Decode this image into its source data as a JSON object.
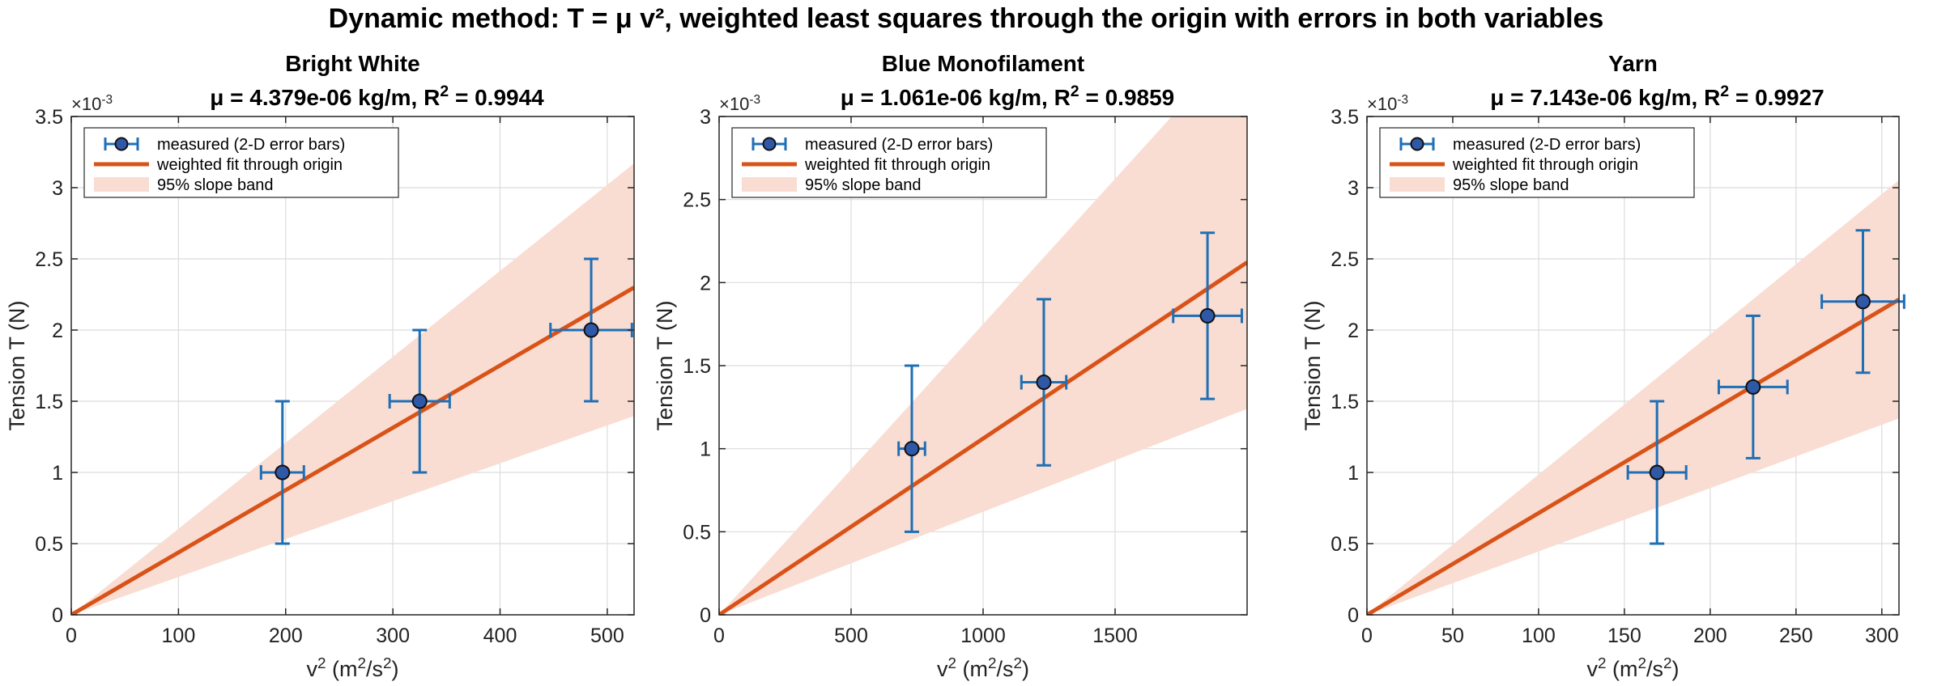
{
  "figure_title": "Dynamic method: T = μ v², weighted least squares through the origin with errors in both variables",
  "colors": {
    "fit": "#d95319",
    "band": "#f9ddd2",
    "errorbar": "#1f6fb5",
    "marker_fill": "#2f58a6",
    "marker_edge": "#111111"
  },
  "chart_data": [
    {
      "type": "scatter",
      "title": "Bright White",
      "subtitle": "μ = 4.379e-06 kg/m,   R² = 0.9944",
      "xlabel": "v²   (m²/s²)",
      "ylabel": "Tension T  (N)",
      "y_multiplier": "×10⁻³",
      "xlim": [
        0,
        525
      ],
      "ylim": [
        0,
        3.5
      ],
      "xticks": [
        0,
        100,
        200,
        300,
        400,
        500
      ],
      "yticks": [
        0,
        0.5,
        1,
        1.5,
        2,
        2.5,
        3,
        3.5
      ],
      "grid": true,
      "legend_position": "top-left",
      "legend": [
        "measured (2-D error bars)",
        "weighted fit through origin",
        "95% slope band"
      ],
      "points": [
        {
          "x": 197,
          "y": 1.0,
          "xerr": 20,
          "yerr": 0.5
        },
        {
          "x": 325,
          "y": 1.5,
          "xerr": 28,
          "yerr": 0.5
        },
        {
          "x": 485,
          "y": 2.0,
          "xerr": 38,
          "yerr": 0.5
        }
      ],
      "fit_slope": 4.379,
      "band_slopes": [
        2.66,
        6.04
      ]
    },
    {
      "type": "scatter",
      "title": "Blue Monofilament",
      "subtitle": "μ = 1.061e-06 kg/m,   R² = 0.9859",
      "xlabel": "v²   (m²/s²)",
      "ylabel": "Tension T  (N)",
      "y_multiplier": "×10⁻³",
      "xlim": [
        0,
        2000
      ],
      "ylim": [
        0,
        3
      ],
      "xticks": [
        0,
        500,
        1000,
        1500
      ],
      "yticks": [
        0,
        0.5,
        1,
        1.5,
        2,
        2.5,
        3
      ],
      "grid": true,
      "legend_position": "top-left",
      "legend": [
        "measured (2-D error bars)",
        "weighted fit through origin",
        "95% slope band"
      ],
      "points": [
        {
          "x": 730,
          "y": 1.0,
          "xerr": 50,
          "yerr": 0.5
        },
        {
          "x": 1230,
          "y": 1.4,
          "xerr": 85,
          "yerr": 0.5
        },
        {
          "x": 1850,
          "y": 1.8,
          "xerr": 130,
          "yerr": 0.5
        }
      ],
      "fit_slope": 1.061,
      "band_slopes": [
        0.62,
        1.75
      ]
    },
    {
      "type": "scatter",
      "title": "Yarn",
      "subtitle": "μ = 7.143e-06 kg/m,   R² = 0.9927",
      "xlabel": "v²   (m²/s²)",
      "ylabel": "Tension T  (N)",
      "y_multiplier": "×10⁻³",
      "xlim": [
        0,
        310
      ],
      "ylim": [
        0,
        3.5
      ],
      "xticks": [
        0,
        50,
        100,
        150,
        200,
        250,
        300
      ],
      "yticks": [
        0,
        0.5,
        1,
        1.5,
        2,
        2.5,
        3,
        3.5
      ],
      "grid": true,
      "legend_position": "top-left",
      "legend": [
        "measured (2-D error bars)",
        "weighted fit through origin",
        "95% slope band"
      ],
      "points": [
        {
          "x": 169,
          "y": 1.0,
          "xerr": 17,
          "yerr": 0.5
        },
        {
          "x": 225,
          "y": 1.6,
          "xerr": 20,
          "yerr": 0.5
        },
        {
          "x": 289,
          "y": 2.2,
          "xerr": 24,
          "yerr": 0.5
        }
      ],
      "fit_slope": 7.143,
      "band_slopes": [
        4.45,
        9.85
      ]
    }
  ]
}
